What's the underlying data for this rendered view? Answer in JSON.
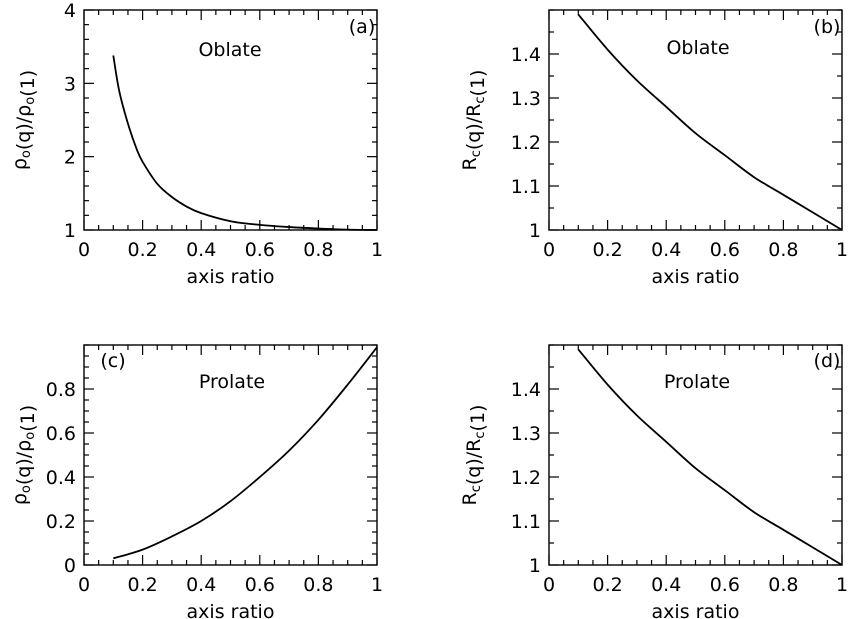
{
  "chart_data": [
    {
      "type": "line",
      "panel_tag": "(a)",
      "annotation": "Oblate",
      "xlabel": "axis ratio",
      "ylabel": "ρo(q)/ρo(1)",
      "xlim": [
        0,
        1
      ],
      "ylim": [
        1,
        4
      ],
      "xticks": [
        0,
        0.2,
        0.4,
        0.6,
        0.8,
        1
      ],
      "xtick_labels": [
        "0",
        "0.2",
        "0.4",
        "0.6",
        "0.8",
        "1"
      ],
      "yticks": [
        1,
        2,
        3,
        4
      ],
      "ytick_labels": [
        "1",
        "2",
        "3",
        "4"
      ],
      "grid": false,
      "series": [
        {
          "x": [
            0.1,
            0.12,
            0.15,
            0.18,
            0.2,
            0.25,
            0.3,
            0.35,
            0.4,
            0.5,
            0.6,
            0.7,
            0.8,
            0.9,
            1.0
          ],
          "y": [
            3.38,
            2.9,
            2.45,
            2.1,
            1.93,
            1.63,
            1.45,
            1.32,
            1.23,
            1.12,
            1.07,
            1.04,
            1.02,
            1.005,
            1.0
          ]
        }
      ]
    },
    {
      "type": "line",
      "panel_tag": "(b)",
      "annotation": "Oblate",
      "xlabel": "axis ratio",
      "ylabel": "Rc(q)/Rc(1)",
      "xlim": [
        0,
        1
      ],
      "ylim": [
        1,
        1.5
      ],
      "xticks": [
        0,
        0.2,
        0.4,
        0.6,
        0.8,
        1
      ],
      "xtick_labels": [
        "0",
        "0.2",
        "0.4",
        "0.6",
        "0.8",
        "1"
      ],
      "yticks": [
        1,
        1.1,
        1.2,
        1.3,
        1.4
      ],
      "ytick_labels": [
        "1",
        "1.1",
        "1.2",
        "1.3",
        "1.4"
      ],
      "grid": false,
      "series": [
        {
          "x": [
            0.1,
            0.2,
            0.3,
            0.4,
            0.5,
            0.6,
            0.7,
            0.8,
            0.9,
            1.0
          ],
          "y": [
            1.49,
            1.41,
            1.34,
            1.28,
            1.22,
            1.17,
            1.12,
            1.08,
            1.04,
            1.0
          ]
        }
      ]
    },
    {
      "type": "line",
      "panel_tag": "(c)",
      "annotation": "Prolate",
      "xlabel": "axis ratio",
      "ylabel": "ρo(q)/ρo(1)",
      "xlim": [
        0,
        1
      ],
      "ylim": [
        0,
        1
      ],
      "xticks": [
        0,
        0.2,
        0.4,
        0.6,
        0.8,
        1
      ],
      "xtick_labels": [
        "0",
        "0.2",
        "0.4",
        "0.6",
        "0.8",
        "1"
      ],
      "yticks": [
        0,
        0.2,
        0.4,
        0.6,
        0.8
      ],
      "ytick_labels": [
        "0",
        "0.2",
        "0.4",
        "0.6",
        "0.8"
      ],
      "grid": false,
      "series": [
        {
          "x": [
            0.1,
            0.2,
            0.3,
            0.4,
            0.5,
            0.6,
            0.7,
            0.8,
            0.9,
            1.0
          ],
          "y": [
            0.03,
            0.07,
            0.13,
            0.2,
            0.29,
            0.4,
            0.52,
            0.66,
            0.82,
            0.99
          ]
        }
      ]
    },
    {
      "type": "line",
      "panel_tag": "(d)",
      "annotation": "Prolate",
      "xlabel": "axis ratio",
      "ylabel": "Rc(q)/Rc(1)",
      "xlim": [
        0,
        1
      ],
      "ylim": [
        1,
        1.5
      ],
      "xticks": [
        0,
        0.2,
        0.4,
        0.6,
        0.8,
        1
      ],
      "xtick_labels": [
        "0",
        "0.2",
        "0.4",
        "0.6",
        "0.8",
        "1"
      ],
      "yticks": [
        1,
        1.1,
        1.2,
        1.3,
        1.4
      ],
      "ytick_labels": [
        "1",
        "1.1",
        "1.2",
        "1.3",
        "1.4"
      ],
      "grid": false,
      "series": [
        {
          "x": [
            0.1,
            0.2,
            0.3,
            0.4,
            0.5,
            0.6,
            0.7,
            0.8,
            0.9,
            1.0
          ],
          "y": [
            1.49,
            1.41,
            1.34,
            1.28,
            1.22,
            1.17,
            1.12,
            1.08,
            1.04,
            1.0
          ]
        }
      ]
    }
  ]
}
